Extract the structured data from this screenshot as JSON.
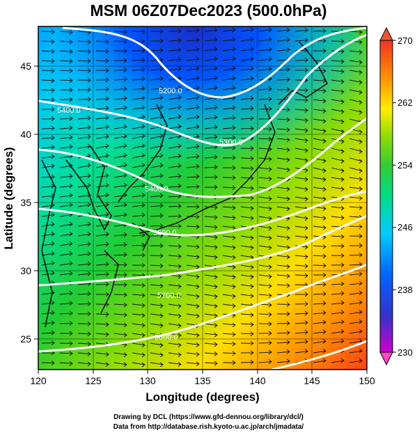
{
  "title": "MSM 06Z07Dec2023 (500.0hPa)",
  "x_axis": {
    "label": "Longitude (degrees)",
    "ticks": [
      "120",
      "125",
      "130",
      "135",
      "140",
      "145",
      "150"
    ],
    "range": [
      120,
      150
    ]
  },
  "y_axis": {
    "label": "Latitude (degrees)",
    "ticks": [
      "25",
      "30",
      "35",
      "40",
      "45"
    ],
    "range": [
      22.4,
      47.6
    ]
  },
  "colorbar": {
    "ticks": [
      "270",
      "262",
      "254",
      "246",
      "238",
      "230"
    ],
    "range": [
      230,
      270
    ],
    "colors": [
      "#cc00cc",
      "#3333cc",
      "#0066ff",
      "#00ccff",
      "#00dd88",
      "#33cc33",
      "#99dd00",
      "#ffee00",
      "#ff9900",
      "#ff5500",
      "#ee3322"
    ]
  },
  "contours": {
    "color": "#ffffff",
    "labels": [
      "5200.0",
      "5300.0",
      "5400.0",
      "5500.0",
      "5600.0",
      "5700.0",
      "5800.0"
    ]
  },
  "credits": {
    "line1": "Drawing by DCL (https://www.gfd-dennou.org/library/dcl/)",
    "line2": "Data from http://database.rish.kyoto-u.ac.jp/arch/jmadata/"
  }
}
